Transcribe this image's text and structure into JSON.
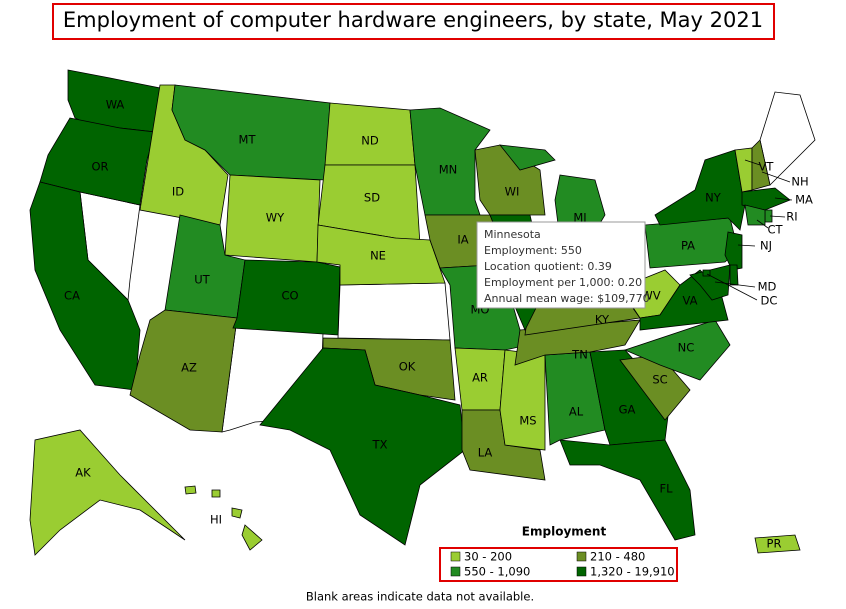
{
  "title": "Employment of computer hardware engineers, by state, May 2021",
  "states": [
    {
      "label": "WA",
      "color": "#006400"
    },
    {
      "label": "OR",
      "color": "#006400"
    },
    {
      "label": "CA",
      "color": "#006400"
    },
    {
      "label": "ID",
      "color": "#9acd32"
    },
    {
      "label": "MT",
      "color": "#228b22"
    },
    {
      "label": "WY",
      "color": "#9acd32"
    },
    {
      "label": "UT",
      "color": "#228b22"
    },
    {
      "label": "AZ",
      "color": "#6b8e23"
    },
    {
      "label": "CO",
      "color": "#006400"
    },
    {
      "label": "ND",
      "color": "#9acd32"
    },
    {
      "label": "SD",
      "color": "#9acd32"
    },
    {
      "label": "NE",
      "color": "#9acd32"
    },
    {
      "label": "OK",
      "color": "#6b8e23"
    },
    {
      "label": "TX",
      "color": "#006400"
    },
    {
      "label": "MN",
      "color": "#228b22"
    },
    {
      "label": "IA",
      "color": "#6b8e23"
    },
    {
      "label": "MO",
      "color": "#228b22"
    },
    {
      "label": "AR",
      "color": "#9acd32"
    },
    {
      "label": "LA",
      "color": "#6b8e23"
    },
    {
      "label": "MS",
      "color": "#9acd32"
    },
    {
      "label": "AL",
      "color": "#228b22"
    },
    {
      "label": "GA",
      "color": "#006400"
    },
    {
      "label": "FL",
      "color": "#006400"
    },
    {
      "label": "SC",
      "color": "#6b8e23"
    },
    {
      "label": "NC",
      "color": "#228b22"
    },
    {
      "label": "TN",
      "color": "#6b8e23"
    },
    {
      "label": "KY",
      "color": "#6b8e23"
    },
    {
      "label": "WV",
      "color": "#9acd32"
    },
    {
      "label": "VA",
      "color": "#006400"
    },
    {
      "label": "PA",
      "color": "#228b22"
    },
    {
      "label": "NY",
      "color": "#006400"
    },
    {
      "label": "VT",
      "color": "#9acd32"
    },
    {
      "label": "NH",
      "color": "#6b8e23"
    },
    {
      "label": "MA",
      "color": "#006400"
    },
    {
      "label": "RI",
      "color": "#228b22"
    },
    {
      "label": "CT",
      "color": "#228b22"
    },
    {
      "label": "NJ",
      "color": "#006400"
    },
    {
      "label": "MD",
      "color": "#006400"
    },
    {
      "label": "DC",
      "color": "#006400"
    },
    {
      "label": "WI",
      "color": "#6b8e23"
    },
    {
      "label": "MI",
      "color": "#228b22"
    },
    {
      "label": "AK",
      "color": "#9acd32"
    },
    {
      "label": "HI",
      "color": "#9acd32"
    },
    {
      "label": "PR",
      "color": "#9acd32"
    },
    {
      "color": "#006400"
    },
    {
      "color": "#228b22"
    },
    {
      "color": "#228b22"
    },
    {
      "color": "#006400"
    }
  ],
  "tooltip": {
    "lines": [
      "Minnesota",
      "Employment: 550",
      "Location quotient: 0.39",
      "Employment per 1,000: 0.20",
      "Annual mean wage: $109,770"
    ]
  },
  "legend": {
    "title": "Employment",
    "items": [
      {
        "label": "30 - 200",
        "color": "#9acd32"
      },
      {
        "label": "210 - 480",
        "color": "#6b8e23"
      },
      {
        "label": "550 - 1,090",
        "color": "#228b22"
      },
      {
        "label": "1,320 - 19,910",
        "color": "#006400"
      }
    ]
  },
  "note": "Blank areas indicate data not available."
}
